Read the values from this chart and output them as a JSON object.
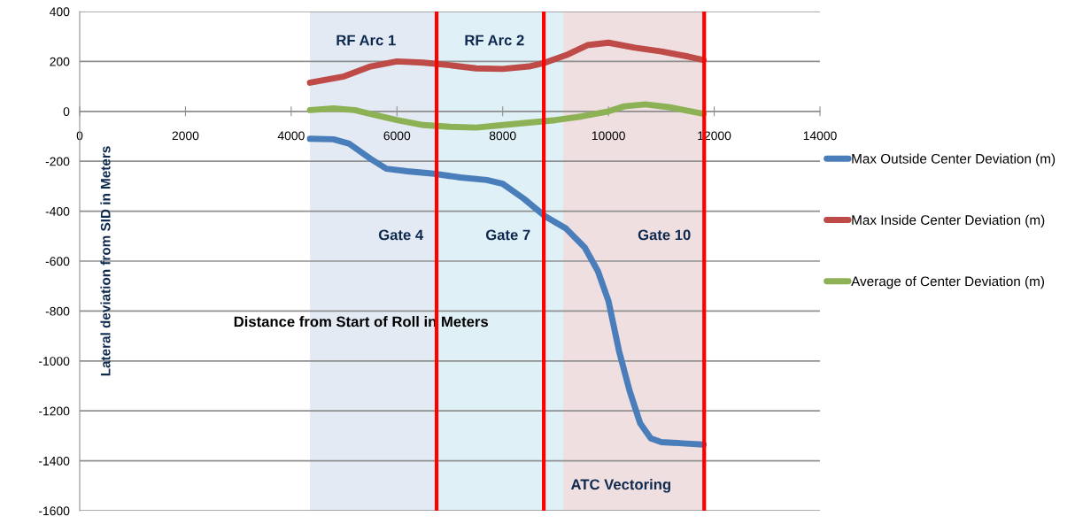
{
  "chart_data": {
    "type": "line",
    "xlabel": "Distance from Start of Roll in Meters",
    "ylabel": "Lateral deviation from SID in Meters",
    "xlim": [
      0,
      14000
    ],
    "xticks": [
      0,
      2000,
      4000,
      6000,
      8000,
      10000,
      12000,
      14000
    ],
    "ylim": [
      -1600,
      400
    ],
    "yticks": [
      -1600,
      -1400,
      -1200,
      -1000,
      -800,
      -600,
      -400,
      -200,
      0,
      200,
      400
    ],
    "grid": "y",
    "legend": "right",
    "marker": "none",
    "line_style": "solid",
    "series": [
      {
        "name": "Max Outside Center Deviation (m)",
        "color": "#4a7ebb",
        "x": [
          4355,
          4800,
          5100,
          5500,
          5800,
          6200,
          6700,
          7200,
          7700,
          8000,
          8400,
          8800,
          9200,
          9550,
          9800,
          10000,
          10200,
          10400,
          10600,
          10800,
          11000,
          11400,
          11800
        ],
        "values": [
          -110,
          -112,
          -130,
          -190,
          -230,
          -240,
          -250,
          -265,
          -275,
          -290,
          -350,
          -420,
          -470,
          -545,
          -640,
          -760,
          -960,
          -1120,
          -1250,
          -1310,
          -1325,
          -1330,
          -1335
        ]
      },
      {
        "name": "Max Inside Center Deviation (m)",
        "color": "#be4b48",
        "x": [
          4355,
          5000,
          5500,
          6000,
          6500,
          7000,
          7500,
          8000,
          8500,
          8800,
          9200,
          9600,
          10000,
          10500,
          11000,
          11500,
          11800
        ],
        "values": [
          115,
          140,
          180,
          200,
          195,
          185,
          172,
          170,
          180,
          195,
          225,
          265,
          275,
          255,
          240,
          220,
          205
        ]
      },
      {
        "name": "Average of Center Deviation (m)",
        "color": "#8db255",
        "x": [
          4355,
          4800,
          5200,
          5600,
          6000,
          6500,
          7000,
          7500,
          8000,
          8500,
          9000,
          9500,
          10000,
          10300,
          10700,
          11200,
          11800
        ],
        "values": [
          5,
          12,
          5,
          -15,
          -35,
          -55,
          -62,
          -65,
          -55,
          -45,
          -35,
          -20,
          0,
          20,
          28,
          15,
          -10
        ]
      }
    ],
    "bands": [
      {
        "axis": "x",
        "from": 4355,
        "to": 6784,
        "label": "RF Arc 1",
        "color": "#e4eaf4"
      },
      {
        "axis": "x",
        "from": 6784,
        "to": 11810,
        "label": "RF Arc 2",
        "color": "#dff0f6"
      },
      {
        "axis": "x",
        "from": 9146,
        "to": 11810,
        "label": "ATC Vectoring",
        "color": "#f0dfe1"
      }
    ],
    "ref_lines": [
      {
        "axis": "x",
        "value": 6750,
        "label": "Gate 4",
        "color": "#ff0000"
      },
      {
        "axis": "x",
        "value": 8777,
        "label": "Gate 7",
        "color": "#ff0000"
      },
      {
        "axis": "x",
        "value": 11810,
        "label": "Gate 10",
        "color": "#ff0000"
      }
    ]
  }
}
